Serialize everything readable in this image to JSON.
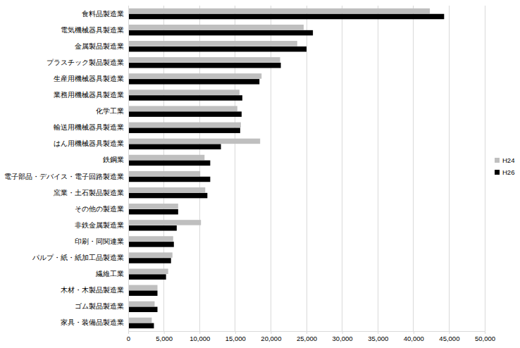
{
  "chart_data": {
    "type": "bar",
    "orientation": "horizontal",
    "categories": [
      "食料品製造業",
      "電気機械器具製造業",
      "金属製品製造業",
      "プラスチック製品製造業",
      "生産用機械器具製造業",
      "業務用機械器具製造業",
      "化学工業",
      "輸送用機械器具製造業",
      "はん用機械器具製造業",
      "鉄鋼業",
      "電子部品・デバイス・電子回路製造業",
      "窯業・土石製品製造業",
      "その他の製造業",
      "非鉄金属製造業",
      "印刷・同関連業",
      "パルプ・紙・紙加工品製造業",
      "繊維工業",
      "木材・木製品製造業",
      "ゴム製品製造業",
      "家具・装備品製造業"
    ],
    "series": [
      {
        "name": "H24",
        "color": "#bfbfbf",
        "values": [
          42300,
          24600,
          23700,
          21300,
          18700,
          15600,
          15300,
          15800,
          18500,
          10700,
          10100,
          10800,
          7000,
          10200,
          6300,
          6200,
          5600,
          4100,
          3700,
          3300
        ]
      },
      {
        "name": "H26",
        "color": "#000000",
        "values": [
          44300,
          25900,
          25000,
          21400,
          18400,
          16000,
          15900,
          15700,
          13000,
          11500,
          11500,
          11100,
          7000,
          6800,
          6400,
          6000,
          5300,
          4100,
          4100,
          3600
        ]
      }
    ],
    "xlim": [
      0,
      50000
    ],
    "xticks": [
      0,
      {
        "value": 5000,
        "label": "5,000"
      },
      {
        "value": 10000,
        "label": "10,000"
      },
      {
        "value": 15000,
        "label": "15,000"
      },
      {
        "value": 20000,
        "label": "20,000"
      },
      {
        "value": 25000,
        "label": "25,000"
      },
      {
        "value": 30000,
        "label": "30,000"
      },
      {
        "value": 35000,
        "label": "35,000"
      },
      {
        "value": 40000,
        "label": "40,000"
      },
      {
        "value": 45000,
        "label": "45,000"
      },
      {
        "value": 50000,
        "label": "50,000"
      }
    ],
    "grid": true,
    "legend": "right"
  }
}
